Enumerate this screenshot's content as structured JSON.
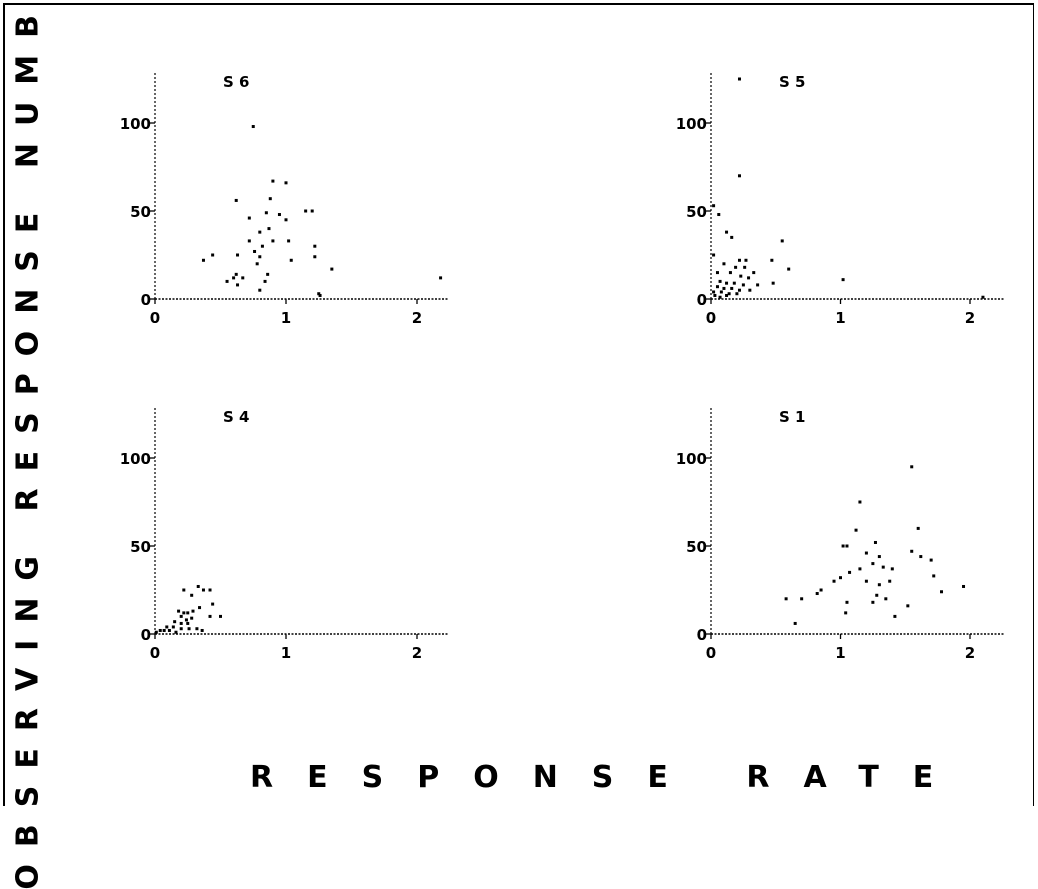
{
  "figure": {
    "ylabel": "OBSERVING RESPONSE NUMBER",
    "xlabel": "RESPONSE RATE"
  },
  "chart_data": [
    {
      "type": "scatter",
      "title": "S 6",
      "xlim": [
        0,
        2.2
      ],
      "ylim": [
        0,
        130
      ],
      "xticks": [
        0,
        1,
        2
      ],
      "yticks": [
        0,
        50,
        100
      ],
      "points": [
        [
          0.75,
          98
        ],
        [
          0.9,
          67
        ],
        [
          1.0,
          66
        ],
        [
          1.15,
          50
        ],
        [
          1.2,
          50
        ],
        [
          0.62,
          56
        ],
        [
          0.88,
          57
        ],
        [
          0.72,
          46
        ],
        [
          0.85,
          49
        ],
        [
          0.95,
          48
        ],
        [
          1.0,
          45
        ],
        [
          0.8,
          38
        ],
        [
          0.87,
          40
        ],
        [
          0.72,
          33
        ],
        [
          0.9,
          33
        ],
        [
          1.02,
          33
        ],
        [
          1.22,
          30
        ],
        [
          0.82,
          30
        ],
        [
          0.76,
          27
        ],
        [
          0.8,
          24
        ],
        [
          0.44,
          25
        ],
        [
          0.37,
          22
        ],
        [
          0.63,
          25
        ],
        [
          0.78,
          20
        ],
        [
          1.04,
          22
        ],
        [
          1.22,
          24
        ],
        [
          1.35,
          17
        ],
        [
          0.62,
          14
        ],
        [
          0.6,
          12
        ],
        [
          0.67,
          12
        ],
        [
          0.55,
          10
        ],
        [
          0.86,
          14
        ],
        [
          0.84,
          10
        ],
        [
          0.8,
          5
        ],
        [
          0.63,
          8
        ],
        [
          1.25,
          3
        ],
        [
          1.26,
          2
        ],
        [
          2.18,
          12
        ]
      ]
    },
    {
      "type": "scatter",
      "title": "S 5",
      "xlim": [
        0,
        2.2
      ],
      "ylim": [
        0,
        130
      ],
      "xticks": [
        0,
        1,
        2
      ],
      "yticks": [
        0,
        50,
        100
      ],
      "points": [
        [
          0.22,
          125
        ],
        [
          0.22,
          70
        ],
        [
          0.02,
          53
        ],
        [
          0.06,
          48
        ],
        [
          0.12,
          38
        ],
        [
          0.16,
          35
        ],
        [
          0.02,
          25
        ],
        [
          0.22,
          22
        ],
        [
          0.27,
          22
        ],
        [
          0.47,
          22
        ],
        [
          0.55,
          33
        ],
        [
          0.6,
          17
        ],
        [
          0.1,
          20
        ],
        [
          0.19,
          18
        ],
        [
          0.26,
          18
        ],
        [
          0.33,
          15
        ],
        [
          0.05,
          15
        ],
        [
          0.15,
          15
        ],
        [
          0.23,
          13
        ],
        [
          0.29,
          12
        ],
        [
          0.07,
          10
        ],
        [
          0.12,
          9
        ],
        [
          0.18,
          9
        ],
        [
          0.25,
          8
        ],
        [
          0.36,
          8
        ],
        [
          0.48,
          9
        ],
        [
          0.05,
          7
        ],
        [
          0.1,
          6
        ],
        [
          0.16,
          6
        ],
        [
          0.22,
          5
        ],
        [
          0.3,
          5
        ],
        [
          0.02,
          4
        ],
        [
          0.08,
          4
        ],
        [
          0.14,
          3
        ],
        [
          0.2,
          3
        ],
        [
          0.03,
          2
        ],
        [
          0.07,
          1
        ],
        [
          0.12,
          2
        ],
        [
          1.02,
          11
        ],
        [
          2.1,
          1
        ]
      ]
    },
    {
      "type": "scatter",
      "title": "S 4",
      "xlim": [
        0,
        2.2
      ],
      "ylim": [
        0,
        130
      ],
      "xticks": [
        0,
        1,
        2
      ],
      "yticks": [
        0,
        50,
        100
      ],
      "points": [
        [
          0.33,
          27
        ],
        [
          0.37,
          25
        ],
        [
          0.42,
          25
        ],
        [
          0.22,
          25
        ],
        [
          0.28,
          22
        ],
        [
          0.34,
          15
        ],
        [
          0.44,
          17
        ],
        [
          0.5,
          10
        ],
        [
          0.42,
          10
        ],
        [
          0.18,
          13
        ],
        [
          0.22,
          12
        ],
        [
          0.25,
          12
        ],
        [
          0.29,
          13
        ],
        [
          0.2,
          10
        ],
        [
          0.24,
          8
        ],
        [
          0.28,
          9
        ],
        [
          0.15,
          7
        ],
        [
          0.2,
          6
        ],
        [
          0.25,
          6
        ],
        [
          0.09,
          4
        ],
        [
          0.14,
          4
        ],
        [
          0.2,
          3
        ],
        [
          0.26,
          3
        ],
        [
          0.32,
          3
        ],
        [
          0.36,
          2
        ],
        [
          0.04,
          2
        ],
        [
          0.07,
          2
        ],
        [
          0.11,
          2
        ],
        [
          0.16,
          1
        ],
        [
          0.01,
          1
        ]
      ]
    },
    {
      "type": "scatter",
      "title": "S 1",
      "xlim": [
        0,
        2.2
      ],
      "ylim": [
        0,
        130
      ],
      "xticks": [
        0,
        1,
        2
      ],
      "yticks": [
        0,
        50,
        100
      ],
      "points": [
        [
          1.55,
          95
        ],
        [
          1.15,
          75
        ],
        [
          1.6,
          60
        ],
        [
          1.12,
          59
        ],
        [
          1.02,
          50
        ],
        [
          1.05,
          50
        ],
        [
          1.27,
          52
        ],
        [
          1.2,
          46
        ],
        [
          1.3,
          44
        ],
        [
          1.55,
          47
        ],
        [
          1.62,
          44
        ],
        [
          1.7,
          42
        ],
        [
          1.25,
          40
        ],
        [
          1.33,
          38
        ],
        [
          1.4,
          37
        ],
        [
          1.15,
          37
        ],
        [
          1.07,
          35
        ],
        [
          1.0,
          32
        ],
        [
          0.95,
          30
        ],
        [
          0.85,
          25
        ],
        [
          0.82,
          23
        ],
        [
          1.2,
          30
        ],
        [
          1.3,
          28
        ],
        [
          1.38,
          30
        ],
        [
          1.72,
          33
        ],
        [
          1.78,
          24
        ],
        [
          1.95,
          27
        ],
        [
          1.28,
          22
        ],
        [
          1.35,
          20
        ],
        [
          1.25,
          18
        ],
        [
          1.52,
          16
        ],
        [
          1.05,
          18
        ],
        [
          0.7,
          20
        ],
        [
          0.58,
          20
        ],
        [
          1.04,
          12
        ],
        [
          1.42,
          10
        ],
        [
          0.65,
          6
        ]
      ]
    }
  ]
}
